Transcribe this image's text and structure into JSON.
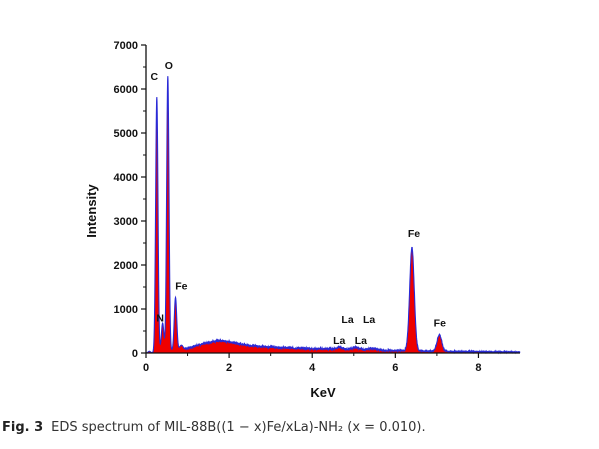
{
  "caption": {
    "label": "Fig. 3",
    "text": "EDS spectrum of MIL-88B((1 − x)Fe/xLa)-NH₂ (x = 0.010)."
  },
  "colors": {
    "fill": "#ee0000",
    "line": "#2a2ad6",
    "axis": "#111111"
  },
  "chart_data": {
    "type": "area",
    "title": "",
    "xlabel": "KeV",
    "ylabel": "Intensity",
    "xlim": [
      0,
      9
    ],
    "ylim": [
      0,
      7000
    ],
    "x_ticks": [
      0,
      2,
      4,
      6,
      8
    ],
    "y_ticks": [
      0,
      1000,
      2000,
      3000,
      4000,
      5000,
      6000,
      7000
    ],
    "grid": false,
    "legend": "none",
    "peaks": [
      {
        "x": 0.08,
        "y": 40,
        "width": 0.03
      },
      {
        "x": 0.26,
        "y": 5800,
        "width": 0.028
      },
      {
        "x": 0.4,
        "y": 650,
        "width": 0.03
      },
      {
        "x": 0.525,
        "y": 6250,
        "width": 0.028
      },
      {
        "x": 0.71,
        "y": 1200,
        "width": 0.03
      },
      {
        "x": 0.85,
        "y": 100,
        "width": 0.04
      },
      {
        "x": 1.75,
        "y": 100,
        "width": 0.35
      },
      {
        "x": 4.65,
        "y": 40,
        "width": 0.08
      },
      {
        "x": 5.05,
        "y": 50,
        "width": 0.08
      },
      {
        "x": 5.45,
        "y": 40,
        "width": 0.08
      },
      {
        "x": 6.4,
        "y": 2350,
        "width": 0.055
      },
      {
        "x": 7.06,
        "y": 380,
        "width": 0.055
      }
    ],
    "background": [
      {
        "x": 0.0,
        "y": 0
      },
      {
        "x": 0.1,
        "y": 0
      },
      {
        "x": 0.9,
        "y": 80
      },
      {
        "x": 1.2,
        "y": 140
      },
      {
        "x": 1.6,
        "y": 170
      },
      {
        "x": 2.0,
        "y": 180
      },
      {
        "x": 2.6,
        "y": 160
      },
      {
        "x": 3.2,
        "y": 125
      },
      {
        "x": 4.0,
        "y": 100
      },
      {
        "x": 5.0,
        "y": 80
      },
      {
        "x": 6.0,
        "y": 55
      },
      {
        "x": 7.0,
        "y": 40
      },
      {
        "x": 8.0,
        "y": 30
      },
      {
        "x": 9.0,
        "y": 20
      }
    ],
    "annotations": [
      {
        "text": "C",
        "x": 0.2,
        "y": 6200
      },
      {
        "text": "O",
        "x": 0.55,
        "y": 6450
      },
      {
        "text": "N",
        "x": 0.34,
        "y": 720
      },
      {
        "text": "Fe",
        "x": 0.85,
        "y": 1440
      },
      {
        "text": "La",
        "x": 4.85,
        "y": 680
      },
      {
        "text": "La",
        "x": 5.37,
        "y": 680
      },
      {
        "text": "La",
        "x": 4.65,
        "y": 200
      },
      {
        "text": "La",
        "x": 5.17,
        "y": 210
      },
      {
        "text": "Fe",
        "x": 6.45,
        "y": 2640
      },
      {
        "text": "Fe",
        "x": 7.07,
        "y": 600
      }
    ]
  }
}
